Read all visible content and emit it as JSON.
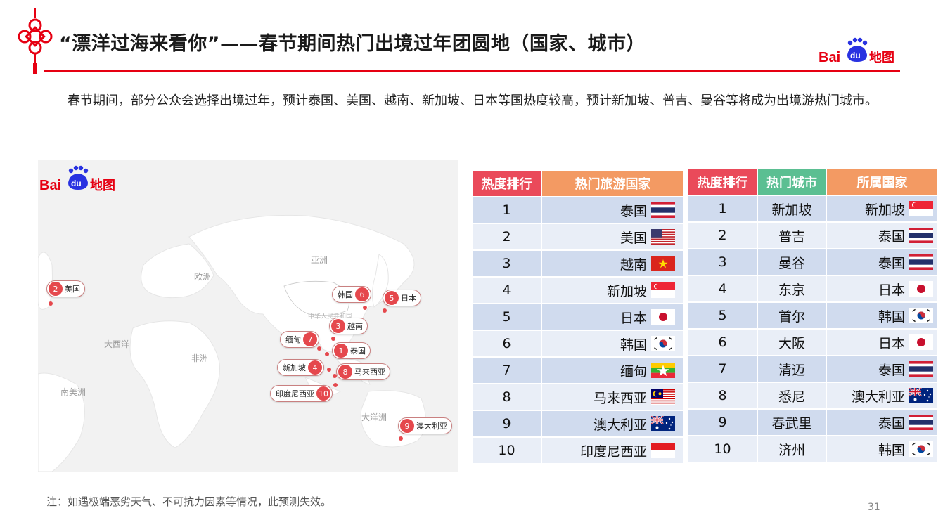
{
  "header": {
    "title": "“漂洋过海来看你”——春节期间热门出境过年团圆地（国家、城市）",
    "logo": {
      "bai": "Bai",
      "du": "du",
      "map": "地图"
    }
  },
  "intro": "春节期间，部分公众会选择出境过年，预计泰国、美国、越南、新加坡、日本等国热度较高，预计新加坡、普吉、曼谷等将成为出境游热门城市。",
  "map": {
    "logo": {
      "bai": "Bai",
      "du": "du",
      "map": "地图"
    },
    "regions": {
      "asia": "亚洲",
      "europe": "欧洲",
      "africa": "非洲",
      "atlantic": "大西洋",
      "south_america": "南美洲",
      "oceania": "大洋洲",
      "china": "中华人民共和国"
    },
    "pins": [
      {
        "num": "2",
        "label": "美国"
      },
      {
        "num": "6",
        "label": "韩国"
      },
      {
        "num": "5",
        "label": "日本"
      },
      {
        "num": "3",
        "label": "越南"
      },
      {
        "num": "7",
        "label": "缅甸"
      },
      {
        "num": "1",
        "label": "泰国"
      },
      {
        "num": "4",
        "label": "新加坡"
      },
      {
        "num": "8",
        "label": "马来西亚"
      },
      {
        "num": "10",
        "label": "印度尼西亚"
      },
      {
        "num": "9",
        "label": "澳大利亚"
      }
    ]
  },
  "countries_table": {
    "headers": [
      "热度排行",
      "热门旅游国家"
    ],
    "rows": [
      {
        "rank": "1",
        "country": "泰国",
        "flag": "thailand-flag"
      },
      {
        "rank": "2",
        "country": "美国",
        "flag": "usa-flag"
      },
      {
        "rank": "3",
        "country": "越南",
        "flag": "vietnam-flag"
      },
      {
        "rank": "4",
        "country": "新加坡",
        "flag": "singapore-flag"
      },
      {
        "rank": "5",
        "country": "日本",
        "flag": "japan-flag"
      },
      {
        "rank": "6",
        "country": "韩国",
        "flag": "korea-flag"
      },
      {
        "rank": "7",
        "country": "缅甸",
        "flag": "myanmar-flag"
      },
      {
        "rank": "8",
        "country": "马来西亚",
        "flag": "malaysia-flag"
      },
      {
        "rank": "9",
        "country": "澳大利亚",
        "flag": "australia-flag"
      },
      {
        "rank": "10",
        "country": "印度尼西亚",
        "flag": "indonesia-flag"
      }
    ]
  },
  "cities_table": {
    "headers": [
      "热度排行",
      "热门城市",
      "所属国家"
    ],
    "rows": [
      {
        "rank": "1",
        "city": "新加坡",
        "country": "新加坡",
        "flag": "singapore-flag"
      },
      {
        "rank": "2",
        "city": "普吉",
        "country": "泰国",
        "flag": "thailand-flag"
      },
      {
        "rank": "3",
        "city": "曼谷",
        "country": "泰国",
        "flag": "thailand-flag"
      },
      {
        "rank": "4",
        "city": "东京",
        "country": "日本",
        "flag": "japan-flag"
      },
      {
        "rank": "5",
        "city": "首尔",
        "country": "韩国",
        "flag": "korea-flag"
      },
      {
        "rank": "6",
        "city": "大阪",
        "country": "日本",
        "flag": "japan-flag"
      },
      {
        "rank": "7",
        "city": "清迈",
        "country": "泰国",
        "flag": "thailand-flag"
      },
      {
        "rank": "8",
        "city": "悉尼",
        "country": "澳大利亚",
        "flag": "australia-flag"
      },
      {
        "rank": "9",
        "city": "春武里",
        "country": "泰国",
        "flag": "thailand-flag"
      },
      {
        "rank": "10",
        "city": "济州",
        "country": "韩国",
        "flag": "korea-flag"
      }
    ]
  },
  "colors": {
    "accent_red": "#e60012",
    "header_red": "#ea4a5a",
    "header_orange": "#f39a63",
    "header_green": "#5bbf92",
    "baidu_blue": "#2932e1"
  },
  "footer": {
    "note": "注：如遇极端恶劣天气、不可抗力因素等情况，此预测失效。",
    "page": "31"
  }
}
